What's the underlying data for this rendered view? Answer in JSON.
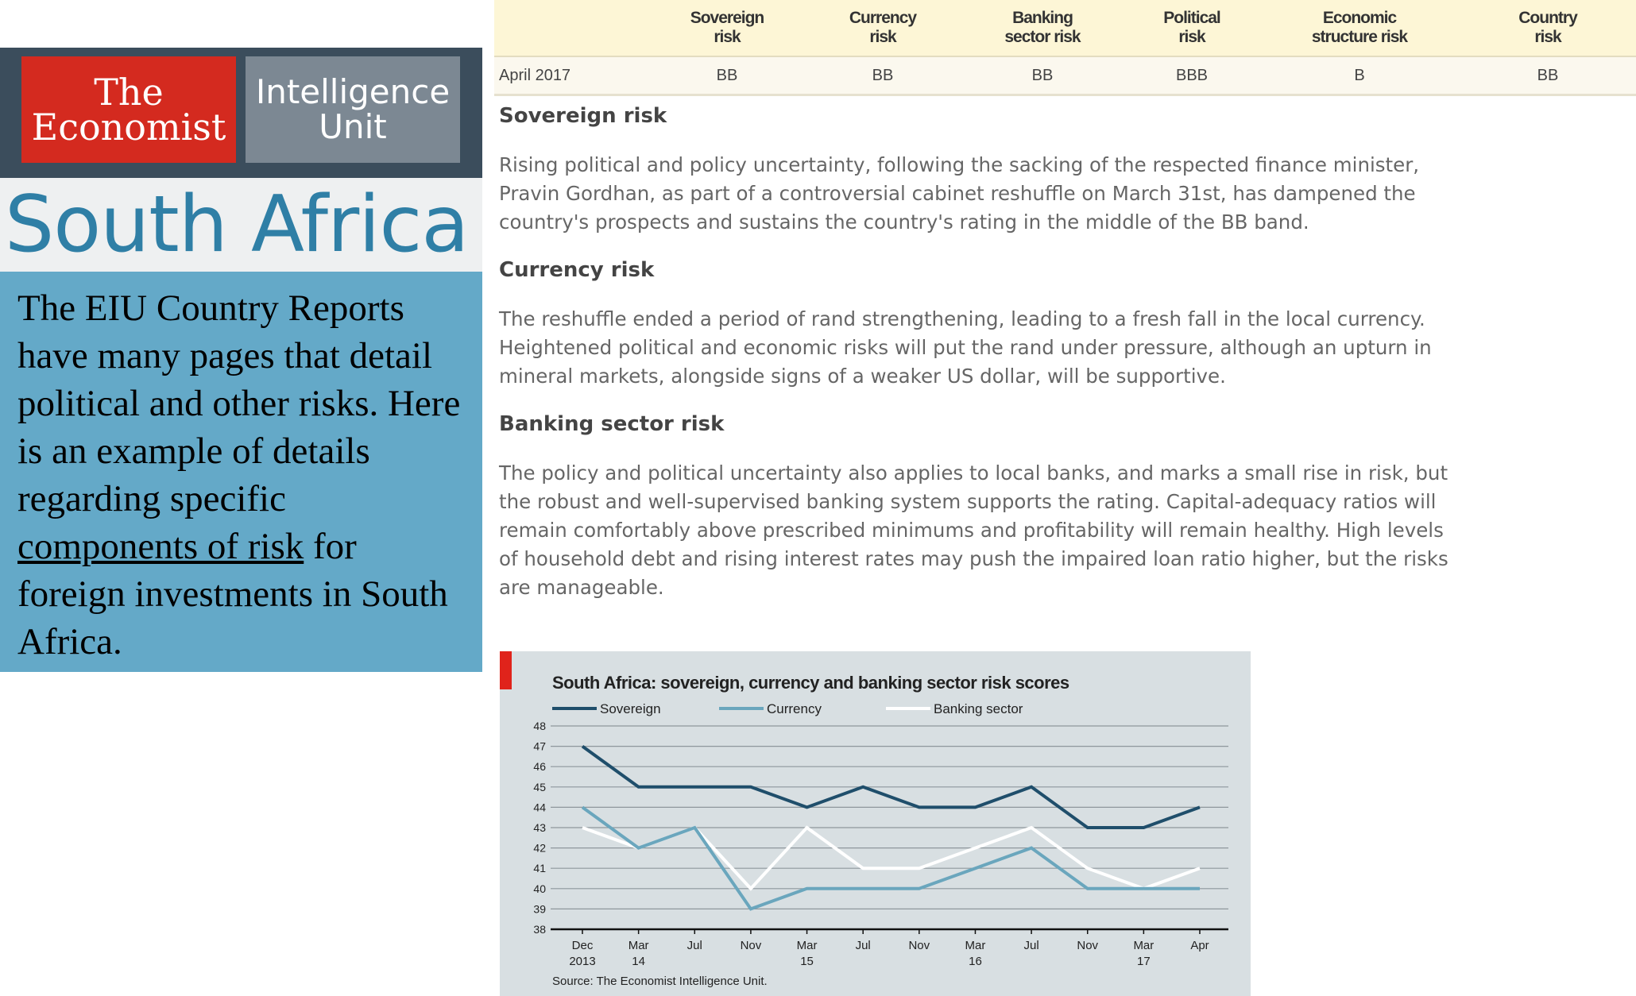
{
  "logo": {
    "economist_line1": "The",
    "economist_line2": "Economist",
    "eiu_line1": "Intelligence",
    "eiu_line2": "Unit"
  },
  "country_title": "South Africa",
  "note": {
    "text_before": "The EIU Country Reports have many pages that detail political and other risks. Here is an example of details regarding specific ",
    "link_text": "components of risk",
    "text_after": " for foreign investments in South Africa."
  },
  "ratings_table": {
    "headers": [
      {
        "line1": "Sovereign",
        "line2": "risk"
      },
      {
        "line1": "Currency",
        "line2": "risk"
      },
      {
        "line1": "Banking",
        "line2": "sector risk"
      },
      {
        "line1": "Political",
        "line2": "risk"
      },
      {
        "line1": "Economic",
        "line2": "structure risk"
      },
      {
        "line1": "Country",
        "line2": "risk"
      }
    ],
    "row_label": "April 2017",
    "values": [
      "BB",
      "BB",
      "BB",
      "BBB",
      "B",
      "BB"
    ]
  },
  "sections": [
    {
      "heading": "Sovereign risk",
      "body": "Rising political and policy uncertainty, following the sacking of the respected finance minister, Pravin Gordhan, as part of a controversial cabinet reshuffle on March 31st, has dampened the country's prospects and sustains the country's rating in the middle of the BB band."
    },
    {
      "heading": "Currency risk",
      "body": "The reshuffle ended a period of rand strengthening, leading to a fresh fall in the local currency. Heightened political and economic risks will put the rand under pressure, although an upturn in mineral markets, alongside signs of a weaker US dollar, will be supportive."
    },
    {
      "heading": "Banking sector risk",
      "body": "The policy and political uncertainty also applies to local banks, and marks a small rise in risk, but the robust and well-supervised banking system supports the rating. Capital-adequacy ratios will remain comfortably above prescribed minimums and profitability will remain healthy. High levels of household debt and rising interest rates may push the impaired loan ratio higher, but the risks are manageable."
    }
  ],
  "chart_data": {
    "type": "line",
    "title": "South Africa: sovereign, currency and banking sector risk scores",
    "source": "Source: The Economist Intelligence Unit.",
    "x": [
      {
        "line1": "Dec",
        "line2": "2013"
      },
      {
        "line1": "Mar",
        "line2": "14"
      },
      {
        "line1": "Jul",
        "line2": ""
      },
      {
        "line1": "Nov",
        "line2": ""
      },
      {
        "line1": "Mar",
        "line2": "15"
      },
      {
        "line1": "Jul",
        "line2": ""
      },
      {
        "line1": "Nov",
        "line2": ""
      },
      {
        "line1": "Mar",
        "line2": "16"
      },
      {
        "line1": "Jul",
        "line2": ""
      },
      {
        "line1": "Nov",
        "line2": ""
      },
      {
        "line1": "Mar",
        "line2": "17"
      },
      {
        "line1": "Apr",
        "line2": ""
      }
    ],
    "ylim": [
      38,
      48
    ],
    "yticks": [
      38,
      39,
      40,
      41,
      42,
      43,
      44,
      45,
      46,
      47,
      48
    ],
    "grid": true,
    "legend_position": "top",
    "series": [
      {
        "name": "Sovereign",
        "color": "#1f4e6b",
        "values": [
          47,
          45,
          45,
          45,
          44,
          45,
          44,
          44,
          45,
          43,
          43,
          44
        ]
      },
      {
        "name": "Currency",
        "color": "#6aa6bd",
        "values": [
          44,
          42,
          43,
          39,
          40,
          40,
          40,
          41,
          42,
          40,
          40,
          40
        ]
      },
      {
        "name": "Banking sector",
        "color": "#ffffff",
        "values": [
          43,
          42,
          43,
          40,
          43,
          41,
          41,
          42,
          43,
          41,
          40,
          41
        ]
      }
    ]
  }
}
